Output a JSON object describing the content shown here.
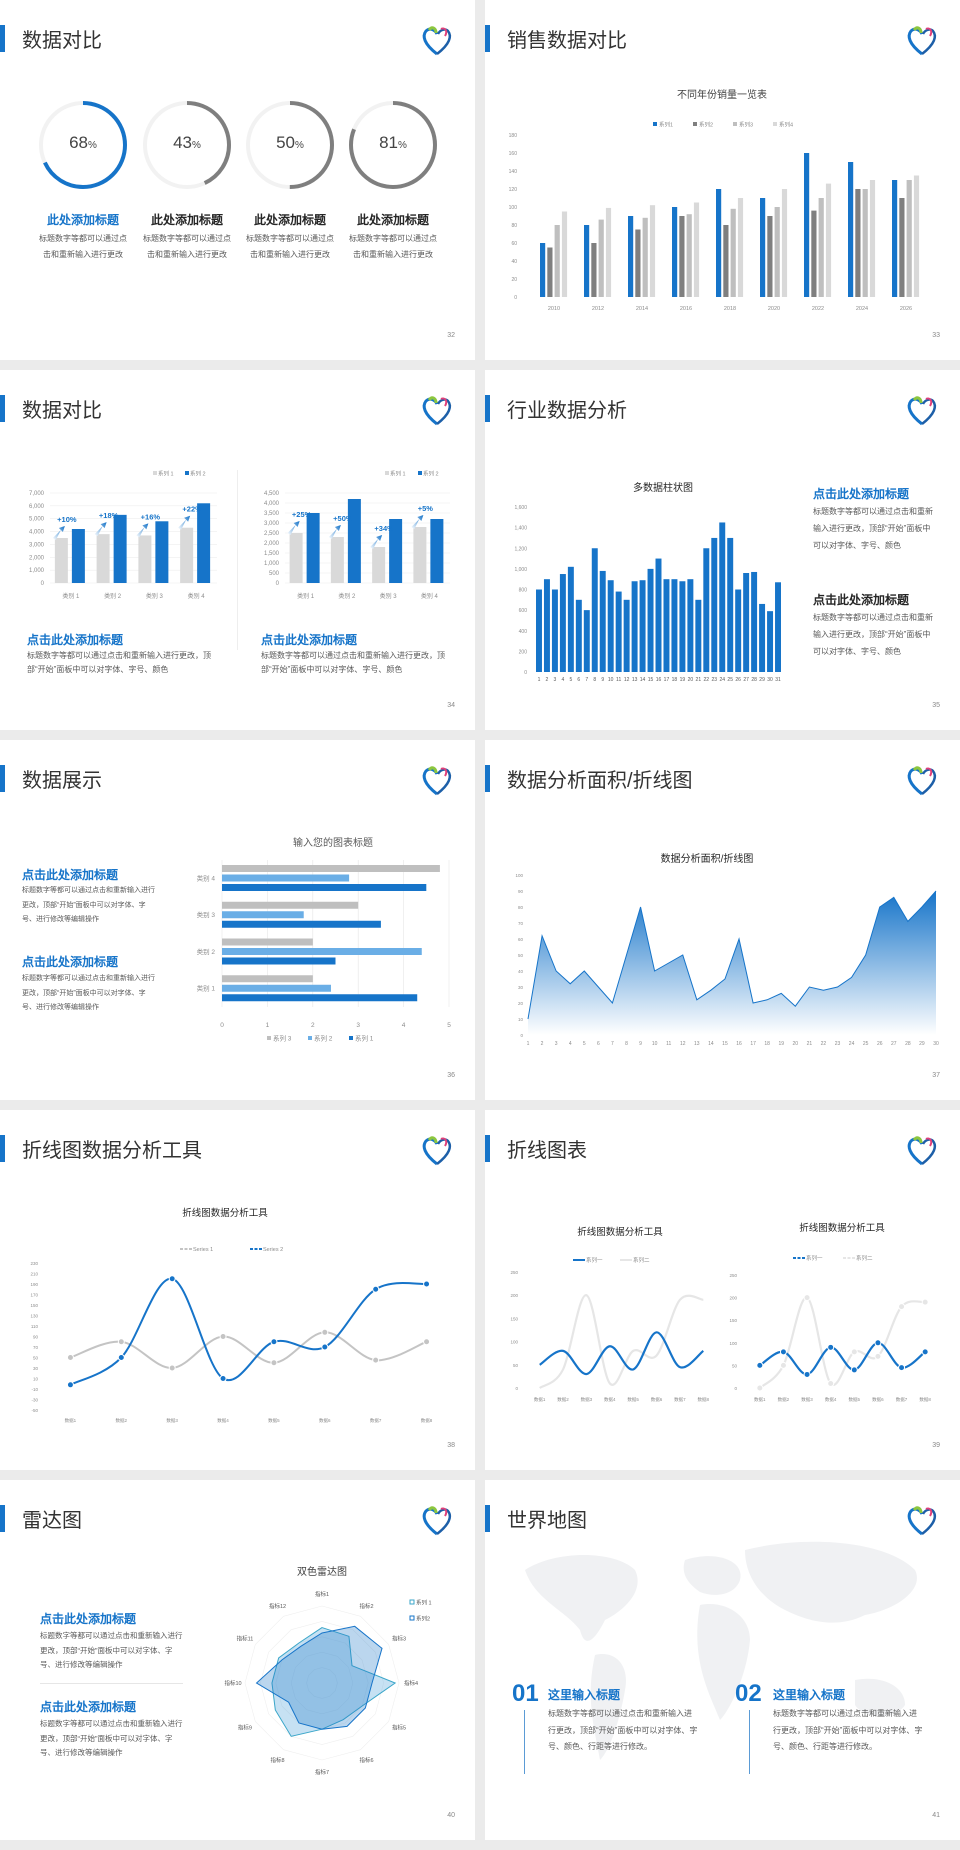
{
  "colors": {
    "accent": "#1674c9",
    "gray_dark": "#7f7f7f",
    "gray_mid": "#bfbfbf",
    "gray_light": "#d9d9d9",
    "blue_light": "#6aaee6",
    "cyan": "#3aa6c9"
  },
  "slides": {
    "s32": {
      "title": "数据对比",
      "page": "32",
      "items": [
        {
          "value": 68,
          "label": "68",
          "unit": "%",
          "heading": "此处添加标题",
          "body": "标题数字等都可以通过点击和重新输入进行更改"
        },
        {
          "value": 43,
          "label": "43",
          "unit": "%",
          "heading": "此处添加标题",
          "body": "标题数字等都可以通过点击和重新输入进行更改"
        },
        {
          "value": 50,
          "label": "50",
          "unit": "%",
          "heading": "此处添加标题",
          "body": "标题数字等都可以通过点击和重新输入进行更改"
        },
        {
          "value": 81,
          "label": "81",
          "unit": "%",
          "heading": "此处添加标题",
          "body": "标题数字等都可以通过点击和重新输入进行更改"
        }
      ]
    },
    "s33": {
      "title": "销售数据对比",
      "page": "33"
    },
    "s34": {
      "title": "数据对比",
      "page": "34",
      "left": {
        "heading": "点击此处添加标题",
        "body": "标题数字等都可以通过点击和重新输入进行更改，顶部“开始”面板中可以对字体、字号、颜色"
      },
      "right": {
        "heading": "点击此处添加标题",
        "body": "标题数字等都可以通过点击和重新输入进行更改，顶部“开始”面板中可以对字体、字号、颜色"
      }
    },
    "s35": {
      "title": "行业数据分析",
      "page": "35",
      "blocks": [
        {
          "heading": "点击此处添加标题",
          "body": "标题数字等都可以通过点击和重新输入进行更改，顶部“开始”面板中可以对字体、字号、颜色"
        },
        {
          "heading": "点击此处添加标题",
          "body": "标题数字等都可以通过点击和重新输入进行更改，顶部“开始”面板中可以对字体、字号、颜色"
        }
      ]
    },
    "s36": {
      "title": "数据展示",
      "page": "36",
      "blocks": [
        {
          "heading": "点击此处添加标题",
          "body": "标题数字等都可以通过点击和重新输入进行更改，顶部“开始”面板中可以对字体、字号、进行修改等编辑操作"
        },
        {
          "heading": "点击此处添加标题",
          "body": "标题数字等都可以通过点击和重新输入进行更改，顶部“开始”面板中可以对字体、字号、进行修改等编辑操作"
        }
      ]
    },
    "s37": {
      "title": "数据分析面积/折线图",
      "page": "37"
    },
    "s38": {
      "title": "折线图数据分析工具",
      "page": "38"
    },
    "s39": {
      "title": "折线图表",
      "page": "39"
    },
    "s40": {
      "title": "雷达图",
      "page": "40",
      "blocks": [
        {
          "heading": "点击此处添加标题",
          "body": "标题数字等都可以通过点击和重新输入进行更改，顶部“开始”面板中可以对字体、字号、进行修改等编辑操作"
        },
        {
          "heading": "点击此处添加标题",
          "body": "标题数字等都可以通过点击和重新输入进行更改，顶部“开始”面板中可以对字体、字号、进行修改等编辑操作"
        }
      ]
    },
    "s41": {
      "title": "世界地图",
      "page": "41",
      "blocks": [
        {
          "number": "01",
          "heading": "这里输入标题",
          "body": "标题数字等都可以通过点击和重新输入进行更改，顶部“开始”面板中可以对字体、字号、颜色、行距等进行修改。"
        },
        {
          "number": "02",
          "heading": "这里输入标题",
          "body": "标题数字等都可以通过点击和重新输入进行更改，顶部“开始”面板中可以对字体、字号、颜色、行距等进行修改。"
        }
      ]
    }
  },
  "chart_data": [
    {
      "type": "bar",
      "title": "不同年份销量一览表",
      "categories": [
        "2010",
        "2012",
        "2014",
        "2016",
        "2018",
        "2020",
        "2022",
        "2024",
        "2026"
      ],
      "series": [
        {
          "name": "系列1",
          "values": [
            60,
            80,
            90,
            100,
            120,
            110,
            160,
            150,
            130
          ]
        },
        {
          "name": "系列2",
          "values": [
            55,
            60,
            75,
            90,
            80,
            90,
            96,
            120,
            110
          ]
        },
        {
          "name": "系列3",
          "values": [
            80,
            86,
            88,
            92,
            98,
            100,
            110,
            120,
            130
          ]
        },
        {
          "name": "系列4",
          "values": [
            95,
            99,
            102,
            105,
            110,
            120,
            126,
            130,
            135
          ]
        }
      ],
      "ylim": [
        0,
        180
      ],
      "yticks": [
        "0",
        "20",
        "40",
        "60",
        "80",
        "100",
        "120",
        "140",
        "160",
        "180"
      ],
      "legend": "top"
    },
    {
      "type": "bar",
      "categories": [
        "类别 1",
        "类别 2",
        "类别 3",
        "类别 4"
      ],
      "series": [
        {
          "name": "系列 1",
          "values": [
            3500,
            3800,
            3700,
            4300
          ]
        },
        {
          "name": "系列 2",
          "values": [
            4200,
            5300,
            4800,
            6200
          ]
        }
      ],
      "annotations": [
        "+10%",
        "+18%",
        "+16%",
        "+22%"
      ],
      "ylim": [
        0,
        7000
      ],
      "yticks": [
        "0",
        "1,000",
        "2,000",
        "3,000",
        "4,000",
        "5,000",
        "6,000",
        "7,000"
      ],
      "legend": "top-right"
    },
    {
      "type": "bar",
      "categories": [
        "类别 1",
        "类别 2",
        "类别 3",
        "类别 4"
      ],
      "series": [
        {
          "name": "系列 1",
          "values": [
            2500,
            2300,
            1800,
            2800
          ]
        },
        {
          "name": "系列 2",
          "values": [
            3500,
            4200,
            3200,
            3200
          ]
        }
      ],
      "annotations": [
        "+25%",
        "+50%",
        "+34%",
        "+5%"
      ],
      "ylim": [
        0,
        4500
      ],
      "yticks": [
        "0",
        "500",
        "1,000",
        "1,500",
        "2,000",
        "2,500",
        "3,000",
        "3,500",
        "4,000",
        "4,500"
      ],
      "legend": "top-right"
    },
    {
      "type": "bar",
      "title": "多数据柱状图",
      "categories": [
        "1",
        "2",
        "3",
        "4",
        "5",
        "6",
        "7",
        "8",
        "9",
        "10",
        "11",
        "12",
        "13",
        "14",
        "15",
        "16",
        "17",
        "18",
        "19",
        "20",
        "21",
        "22",
        "23",
        "24",
        "25",
        "26",
        "27",
        "28",
        "29",
        "30",
        "31"
      ],
      "values": [
        800,
        900,
        800,
        950,
        1020,
        700,
        600,
        1200,
        980,
        890,
        780,
        700,
        880,
        890,
        1000,
        1100,
        900,
        900,
        880,
        900,
        700,
        1200,
        1300,
        1450,
        1300,
        800,
        960,
        970,
        660,
        590,
        870
      ],
      "ylim": [
        0,
        1600
      ],
      "yticks": [
        "0",
        "200",
        "400",
        "600",
        "800",
        "1,000",
        "1,200",
        "1,400",
        "1,600"
      ]
    },
    {
      "type": "bar",
      "orientation": "horizontal",
      "title": "输入您的图表标题",
      "categories": [
        "类别 1",
        "类别 2",
        "类别 3",
        "类别 4"
      ],
      "series": [
        {
          "name": "系列 1",
          "values": [
            4.3,
            2.5,
            3.5,
            4.5
          ]
        },
        {
          "name": "系列 2",
          "values": [
            2.4,
            4.4,
            1.8,
            2.8
          ]
        },
        {
          "name": "系列 3",
          "values": [
            2,
            2,
            3,
            4.8
          ]
        }
      ],
      "xlim": [
        0,
        5
      ],
      "xticks": [
        "0",
        "1",
        "2",
        "3",
        "4",
        "5"
      ],
      "legend": "bottom"
    },
    {
      "type": "area",
      "title": "数据分析面积/折线图",
      "x": [
        "1",
        "2",
        "3",
        "4",
        "5",
        "6",
        "7",
        "8",
        "9",
        "10",
        "11",
        "12",
        "13",
        "14",
        "15",
        "16",
        "17",
        "18",
        "19",
        "20",
        "21",
        "22",
        "23",
        "24",
        "25",
        "26",
        "27",
        "28",
        "29",
        "30"
      ],
      "values": [
        10,
        62,
        40,
        32,
        40,
        30,
        20,
        50,
        80,
        40,
        45,
        50,
        22,
        28,
        35,
        60,
        20,
        22,
        26,
        18,
        30,
        28,
        30,
        36,
        50,
        80,
        86,
        71,
        80,
        90
      ],
      "ylim": [
        0,
        100
      ],
      "yticks": [
        "0",
        "10",
        "20",
        "30",
        "40",
        "50",
        "60",
        "70",
        "80",
        "90",
        "100"
      ]
    },
    {
      "type": "line",
      "smooth": true,
      "title": "折线图数据分析工具",
      "categories": [
        "数据1",
        "数据2",
        "数据3",
        "数据4",
        "数据5",
        "数据6",
        "数据7",
        "数据8"
      ],
      "series": [
        {
          "name": "Series 1",
          "values": [
            50,
            80,
            30,
            90,
            40,
            98,
            45,
            80
          ]
        },
        {
          "name": "Series 2",
          "values": [
            -2,
            50,
            200,
            10,
            80,
            70,
            180,
            190
          ]
        }
      ],
      "ylim": [
        -50,
        230
      ],
      "yticks": [
        "-50",
        "-30",
        "-10",
        "10",
        "30",
        "50",
        "70",
        "90",
        "110",
        "130",
        "150",
        "170",
        "190",
        "210",
        "230"
      ],
      "legend": "top"
    },
    {
      "type": "line",
      "smooth": true,
      "title": "折线图数据分析工具",
      "categories": [
        "数据1",
        "数据2",
        "数据3",
        "数据4",
        "数据5",
        "数据6",
        "数据7",
        "数据8"
      ],
      "series": [
        {
          "name": "系列一",
          "values": [
            50,
            80,
            30,
            90,
            40,
            120,
            45,
            80
          ]
        },
        {
          "name": "系列二",
          "values": [
            0,
            40,
            200,
            10,
            80,
            70,
            190,
            190
          ]
        }
      ],
      "ylim": [
        0,
        250
      ],
      "yticks": [
        "0",
        "50",
        "100",
        "150",
        "200",
        "250"
      ],
      "legend": "top"
    },
    {
      "type": "line",
      "smooth": true,
      "markers": true,
      "title": "折线图数据分析工具",
      "categories": [
        "数据1",
        "数据2",
        "数据3",
        "数据4",
        "数据5",
        "数据6",
        "数据7",
        "数据8"
      ],
      "series": [
        {
          "name": "系列一",
          "values": [
            50,
            80,
            30,
            90,
            40,
            100,
            45,
            80
          ]
        },
        {
          "name": "系列二",
          "values": [
            0,
            50,
            200,
            10,
            80,
            70,
            180,
            190
          ]
        }
      ],
      "ylim": [
        0,
        250
      ],
      "yticks": [
        "0",
        "50",
        "100",
        "150",
        "200",
        "250"
      ],
      "legend": "top"
    },
    {
      "type": "radar",
      "title": "双色雷达图",
      "categories": [
        "指标1",
        "指标2",
        "指标3",
        "指标4",
        "指标5",
        "指标6",
        "指标7",
        "指标8",
        "指标9",
        "指标10",
        "指标11",
        "指标12"
      ],
      "series": [
        {
          "name": "系列 1",
          "values": [
            72,
            70,
            45,
            95,
            60,
            55,
            60,
            80,
            70,
            65,
            65,
            60
          ]
        },
        {
          "name": "系列2",
          "values": [
            65,
            85,
            90,
            65,
            65,
            65,
            60,
            60,
            50,
            85,
            60,
            55
          ]
        }
      ],
      "legend": "top-right"
    }
  ]
}
